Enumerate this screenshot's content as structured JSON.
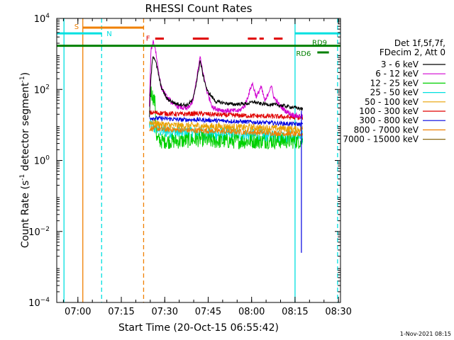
{
  "chart_data": {
    "type": "line",
    "title": "RHESSI Count Rates",
    "xlabel": "Start Time (20-Oct-15 06:55:42)",
    "ylabel_main": "Count Rate (s",
    "ylabel_mid": " detector segment",
    "ylabel_end": ")",
    "ylabel_exp": "-1",
    "x_unit": "minutes since 06:55:42",
    "xlim": [
      -3,
      95
    ],
    "ylim": [
      0.0001,
      10000
    ],
    "yscale": "log",
    "grid": false,
    "x_ticks": [
      {
        "label": "07:00",
        "t": 4.3
      },
      {
        "label": "07:15",
        "t": 19.3
      },
      {
        "label": "07:30",
        "t": 34.3
      },
      {
        "label": "07:45",
        "t": 49.3
      },
      {
        "label": "08:00",
        "t": 64.3
      },
      {
        "label": "08:15",
        "t": 79.3
      },
      {
        "label": "08:30",
        "t": 94.3
      }
    ],
    "y_ticks": [
      {
        "base": "10",
        "exp": "−4",
        "v": 0.0001
      },
      {
        "base": "10",
        "exp": "−2",
        "v": 0.01
      },
      {
        "base": "10",
        "exp": "0",
        "v": 1
      },
      {
        "base": "10",
        "exp": "2",
        "v": 100
      },
      {
        "base": "10",
        "exp": "4",
        "v": 10000
      }
    ],
    "legend": {
      "placement": "right",
      "header1": "Det 1f,5f,7f,",
      "header2": "FDecim 2, Att 0",
      "entries": [
        {
          "label": "3 - 6 keV",
          "color": "#000000"
        },
        {
          "label": "6 - 12 keV",
          "color": "#d000d0"
        },
        {
          "label": "12 - 25 keV",
          "color": "#00d000"
        },
        {
          "label": "25 - 50 keV",
          "color": "#00e0e0"
        },
        {
          "label": "50 - 100 keV",
          "color": "#e8a000"
        },
        {
          "label": "100 - 300 keV",
          "color": "#e00000"
        },
        {
          "label": "300 - 800 keV",
          "color": "#0000e0"
        },
        {
          "label": "800 - 7000 keV",
          "color": "#f08000"
        },
        {
          "label": "7000 - 15000 keV",
          "color": "#8b6914"
        }
      ]
    },
    "flags": [
      {
        "label": "S",
        "color": "#f08000",
        "t0": 6,
        "t1": 27,
        "y": 5500
      },
      {
        "label": "N",
        "color": "#00e0e0",
        "t0": -3,
        "t1": 12.5,
        "y": 3800
      },
      {
        "label": "F",
        "color": "#e00000",
        "segments": [
          [
            31,
            34
          ],
          [
            44,
            49.5
          ],
          [
            63,
            66
          ],
          [
            67,
            68.5
          ],
          [
            72,
            75
          ]
        ],
        "y": 2700
      },
      {
        "label": "RD6",
        "color": "#008000",
        "t0": 87,
        "t1": 91,
        "y": 1100
      },
      {
        "label": "RD9",
        "color": "#008000",
        "t0": -3,
        "t1": 95,
        "y": 1700
      },
      {
        "label": "",
        "color": "#00e0e0",
        "t0": 79.3,
        "t1": 95,
        "y": 3800
      }
    ],
    "vlines": [
      {
        "t": -0.5,
        "color": "#00e0e0",
        "style": "solid"
      },
      {
        "t": 6,
        "color": "#f08000",
        "style": "solid"
      },
      {
        "t": 12.5,
        "color": "#00e0e0",
        "style": "dashed"
      },
      {
        "t": 27,
        "color": "#f08000",
        "style": "dashed"
      },
      {
        "t": 79.3,
        "color": "#00e0e0",
        "style": "solid"
      },
      {
        "t": 94,
        "color": "#00e0e0",
        "style": "dashed"
      }
    ],
    "series": [
      {
        "name": "3 - 6 keV",
        "color": "#000000",
        "noise": 0.05,
        "points": [
          [
            29,
            15
          ],
          [
            29.5,
            200
          ],
          [
            30.2,
            900
          ],
          [
            31,
            700
          ],
          [
            32,
            300
          ],
          [
            33,
            120
          ],
          [
            35,
            55
          ],
          [
            38,
            40
          ],
          [
            42,
            36
          ],
          [
            44,
            50
          ],
          [
            45.5,
            200
          ],
          [
            46.5,
            650
          ],
          [
            47.5,
            250
          ],
          [
            49,
            90
          ],
          [
            52,
            45
          ],
          [
            58,
            38
          ],
          [
            63,
            40
          ],
          [
            65,
            45
          ],
          [
            67,
            40
          ],
          [
            70,
            38
          ],
          [
            74,
            36
          ],
          [
            76,
            34
          ],
          [
            80,
            30
          ],
          [
            82,
            28
          ]
        ]
      },
      {
        "name": "6 - 12 keV",
        "color": "#d000d0",
        "noise": 0.07,
        "points": [
          [
            29,
            30
          ],
          [
            29.5,
            1200
          ],
          [
            30.3,
            2300
          ],
          [
            31,
            1500
          ],
          [
            32,
            400
          ],
          [
            33,
            120
          ],
          [
            35,
            60
          ],
          [
            38,
            35
          ],
          [
            42,
            28
          ],
          [
            44,
            45
          ],
          [
            45.5,
            250
          ],
          [
            46.5,
            800
          ],
          [
            47.5,
            300
          ],
          [
            49,
            80
          ],
          [
            51,
            30
          ],
          [
            55,
            25
          ],
          [
            60,
            25
          ],
          [
            62,
            35
          ],
          [
            64.5,
            150
          ],
          [
            66,
            60
          ],
          [
            67.5,
            120
          ],
          [
            69,
            45
          ],
          [
            71,
            130
          ],
          [
            72,
            60
          ],
          [
            74,
            35
          ],
          [
            76,
            25
          ],
          [
            78,
            20
          ],
          [
            80,
            18
          ],
          [
            82,
            18
          ]
        ]
      },
      {
        "name": "12 - 25 keV",
        "color": "#00d000",
        "noise": 0.22,
        "points": [
          [
            29,
            60
          ],
          [
            29.5,
            90
          ],
          [
            30.3,
            60
          ],
          [
            31,
            40
          ],
          [
            31.5,
            4
          ],
          [
            33,
            3.5
          ],
          [
            36,
            3.5
          ],
          [
            40,
            3.5
          ],
          [
            44,
            3.8
          ],
          [
            47,
            4
          ],
          [
            50,
            3.5
          ],
          [
            55,
            3.5
          ],
          [
            60,
            3.5
          ],
          [
            65,
            3.5
          ],
          [
            70,
            3.5
          ],
          [
            75,
            3.5
          ],
          [
            80,
            3.5
          ],
          [
            82,
            3.5
          ]
        ]
      },
      {
        "name": "25 - 50 keV",
        "color": "#00e0e0",
        "noise": 0.2,
        "points": [
          [
            29,
            10
          ],
          [
            31,
            8
          ],
          [
            33,
            7
          ],
          [
            36,
            6.5
          ],
          [
            40,
            6
          ],
          [
            45,
            6
          ],
          [
            50,
            5.5
          ],
          [
            55,
            5.5
          ],
          [
            60,
            5.5
          ],
          [
            65,
            5
          ],
          [
            70,
            5
          ],
          [
            75,
            4.8
          ],
          [
            80,
            4.5
          ],
          [
            82,
            4.5
          ]
        ]
      },
      {
        "name": "50 - 100 keV",
        "color": "#e8a000",
        "noise": 0.1,
        "points": [
          [
            29,
            12
          ],
          [
            31,
            11
          ],
          [
            35,
            10
          ],
          [
            40,
            9.5
          ],
          [
            45,
            9.5
          ],
          [
            50,
            9
          ],
          [
            55,
            9
          ],
          [
            60,
            8.5
          ],
          [
            65,
            8.5
          ],
          [
            70,
            8
          ],
          [
            75,
            8
          ],
          [
            80,
            7.5
          ],
          [
            82,
            7.5
          ]
        ]
      },
      {
        "name": "100 - 300 keV",
        "color": "#e00000",
        "noise": 0.07,
        "points": [
          [
            29,
            22
          ],
          [
            31,
            22
          ],
          [
            35,
            21
          ],
          [
            40,
            20
          ],
          [
            45,
            21
          ],
          [
            50,
            20
          ],
          [
            55,
            19
          ],
          [
            60,
            18.5
          ],
          [
            65,
            18
          ],
          [
            70,
            17.5
          ],
          [
            75,
            17
          ],
          [
            80,
            16
          ],
          [
            82,
            16
          ]
        ]
      },
      {
        "name": "300 - 800 keV",
        "color": "#0000e0",
        "noise": 0.06,
        "points": [
          [
            29,
            16
          ],
          [
            31,
            15.5
          ],
          [
            35,
            15
          ],
          [
            40,
            14
          ],
          [
            45,
            14
          ],
          [
            50,
            13.5
          ],
          [
            55,
            13
          ],
          [
            60,
            12.5
          ],
          [
            65,
            12
          ],
          [
            70,
            11.5
          ],
          [
            75,
            11
          ],
          [
            80,
            10.5
          ],
          [
            82,
            10.5
          ]
        ]
      },
      {
        "name": "800 - 7000 keV",
        "color": "#f08000",
        "noise": 0.08,
        "points": [
          [
            29,
            8
          ],
          [
            31,
            8
          ],
          [
            35,
            7.5
          ],
          [
            40,
            7.2
          ],
          [
            45,
            7
          ],
          [
            50,
            6.8
          ],
          [
            55,
            6.6
          ],
          [
            60,
            6.4
          ],
          [
            65,
            6.2
          ],
          [
            70,
            6
          ],
          [
            75,
            5.8
          ],
          [
            80,
            5.5
          ],
          [
            82,
            5.5
          ]
        ]
      }
    ],
    "drop": {
      "t": 81.5,
      "y_top": 25,
      "y_bottom": 0.0025,
      "color": "#0000e0"
    }
  },
  "timestamp": "1-Nov-2021 08:15"
}
